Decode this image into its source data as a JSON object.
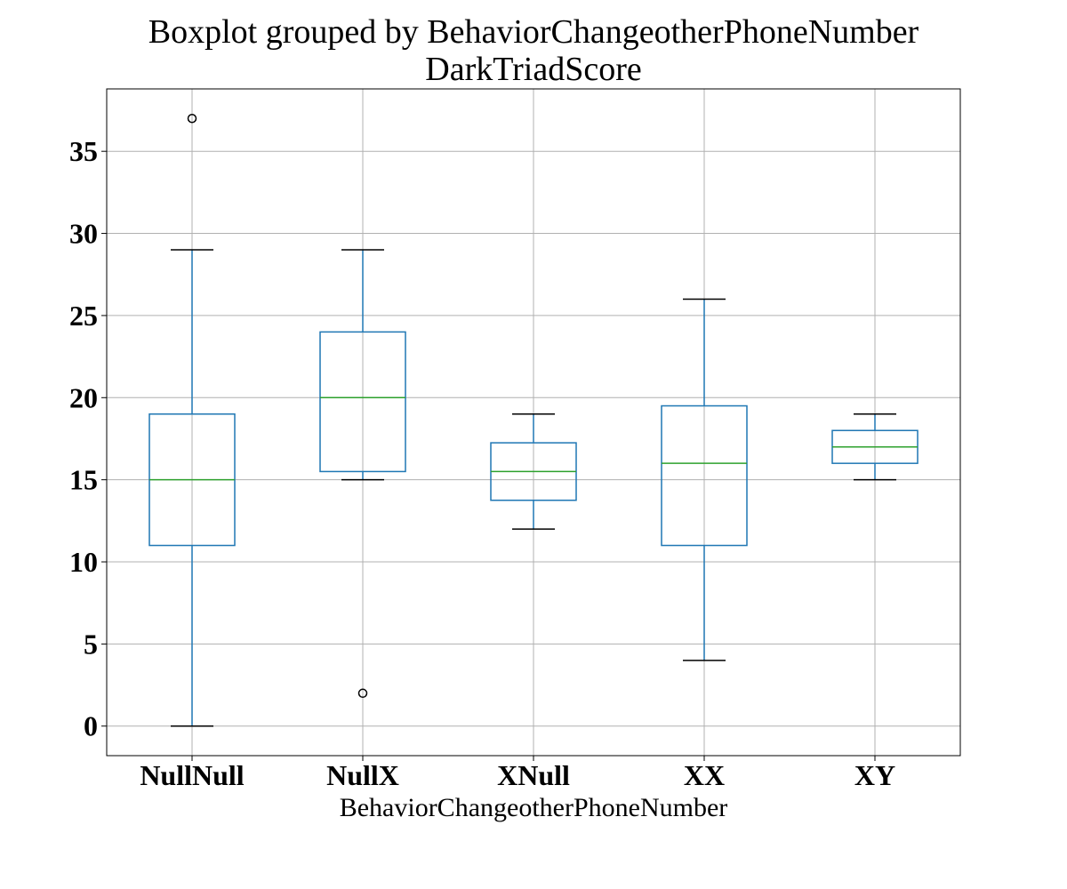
{
  "chart_data": {
    "type": "boxplot",
    "title": "Boxplot grouped by BehaviorChangeotherPhoneNumber",
    "subtitle": "DarkTriadScore",
    "xlabel": "BehaviorChangeotherPhoneNumber",
    "ylabel": "",
    "ylim": [
      -1.8,
      38.8
    ],
    "yticks": [
      0,
      5,
      10,
      15,
      20,
      25,
      30,
      35
    ],
    "grid": true,
    "categories": [
      "NullNull",
      "NullX",
      "XNull",
      "XX",
      "XY"
    ],
    "boxes": [
      {
        "category": "NullNull",
        "whisker_low": 0,
        "q1": 11,
        "median": 15,
        "q3": 19,
        "whisker_high": 29,
        "outliers": [
          37
        ]
      },
      {
        "category": "NullX",
        "whisker_low": 15,
        "q1": 15.5,
        "median": 20,
        "q3": 24,
        "whisker_high": 29,
        "outliers": [
          2
        ]
      },
      {
        "category": "XNull",
        "whisker_low": 12,
        "q1": 13.75,
        "median": 15.5,
        "q3": 17.25,
        "whisker_high": 19,
        "outliers": []
      },
      {
        "category": "XX",
        "whisker_low": 4,
        "q1": 11,
        "median": 16,
        "q3": 19.5,
        "whisker_high": 26,
        "outliers": []
      },
      {
        "category": "XY",
        "whisker_low": 15,
        "q1": 16,
        "median": 17,
        "q3": 18,
        "whisker_high": 19,
        "outliers": []
      }
    ],
    "colors": {
      "box": "#1f77b4",
      "median": "#2ca02c",
      "whisker_cap": "#000000",
      "outlier": "#000000",
      "grid": "#b0b0b0",
      "axes": "#000000"
    }
  }
}
